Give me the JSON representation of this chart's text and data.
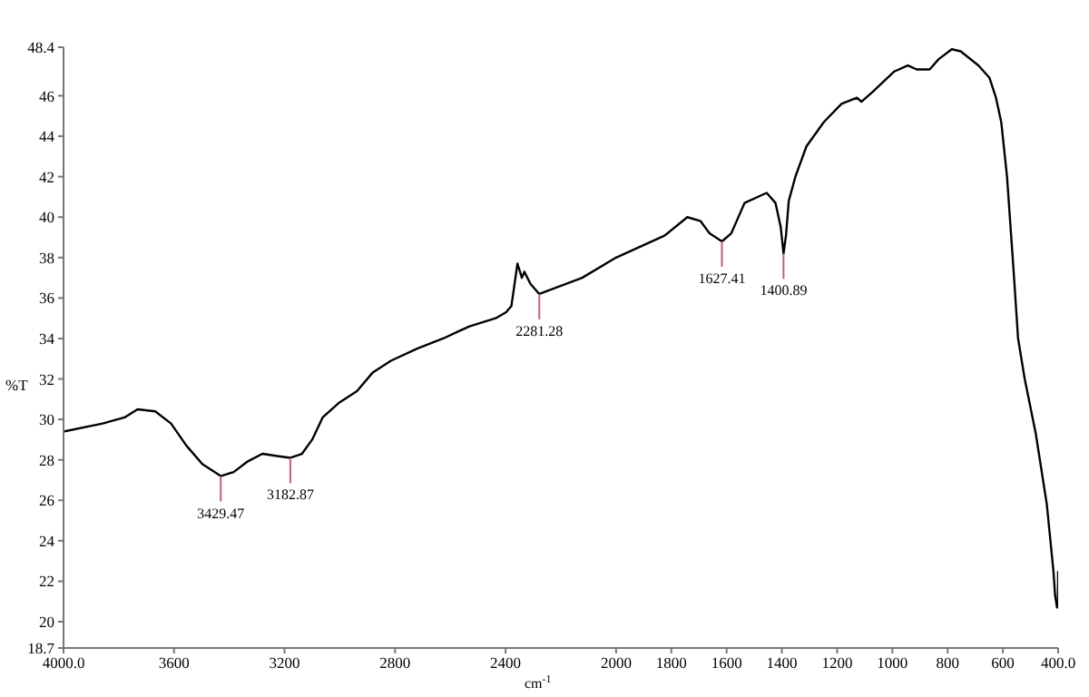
{
  "chart_data": {
    "type": "line",
    "xlabel": "cm$^{-1}$",
    "ylabel": "%T",
    "x": [
      4000,
      3858,
      3779,
      3732,
      3668,
      3611,
      3555,
      3498,
      3431,
      3384,
      3336,
      3280,
      3232,
      3179,
      3137,
      3100,
      3062,
      3005,
      2938,
      2882,
      2815,
      2720,
      2626,
      2531,
      2436,
      2398,
      2379,
      2357,
      2341,
      2332,
      2310,
      2278,
      2123,
      2000,
      1823,
      1742,
      1694,
      1662,
      1617,
      1583,
      1535,
      1455,
      1423,
      1404,
      1394,
      1385,
      1375,
      1351,
      1311,
      1248,
      1184,
      1128,
      1112,
      1071,
      993,
      944,
      912,
      865,
      833,
      785,
      753,
      689,
      649,
      625,
      606,
      585,
      561,
      545,
      521,
      481,
      441,
      417,
      411,
      404,
      401,
      400
    ],
    "series": [
      {
        "color": "#000000",
        "values": [
          29.4,
          29.8,
          30.1,
          30.5,
          30.4,
          29.8,
          28.7,
          27.8,
          27.2,
          27.4,
          27.9,
          28.3,
          28.2,
          28.1,
          28.3,
          29.0,
          30.1,
          30.8,
          31.4,
          32.3,
          32.9,
          33.5,
          34.0,
          34.6,
          35.0,
          35.3,
          35.6,
          37.7,
          37.0,
          37.3,
          36.7,
          36.2,
          37.0,
          38.0,
          39.1,
          40.0,
          39.8,
          39.2,
          38.8,
          39.2,
          40.7,
          41.2,
          40.7,
          39.5,
          38.2,
          39.1,
          40.8,
          42.0,
          43.5,
          44.7,
          45.6,
          45.9,
          45.7,
          46.2,
          47.2,
          47.5,
          47.3,
          47.3,
          47.8,
          48.3,
          48.2,
          47.5,
          46.9,
          45.9,
          44.7,
          42.0,
          37.3,
          34.0,
          32.0,
          29.3,
          25.8,
          22.5,
          21.3,
          20.7,
          20.7,
          22.5
        ]
      }
    ],
    "xlim": [
      4000,
      400
    ],
    "xticks": [
      {
        "value": 4000,
        "label": "4000.0"
      },
      3600,
      3200,
      2800,
      2400,
      2000,
      1800,
      1600,
      1400,
      1200,
      1000,
      800,
      600,
      {
        "value": 400,
        "label": "400.0"
      }
    ],
    "ylim": [
      18.7,
      48.4
    ],
    "yticks": [
      18.7,
      20,
      22,
      24,
      26,
      28,
      30,
      32,
      34,
      36,
      38,
      40,
      42,
      44,
      46,
      48.4
    ],
    "annotations": [
      {
        "text": "3429.47",
        "x": 3431,
        "y": 27.2
      },
      {
        "text": "3182.87",
        "x": 3179,
        "y": 28.1
      },
      {
        "text": "2281.28",
        "x": 2278,
        "y": 36.2
      },
      {
        "text": "1627.41",
        "x": 1617,
        "y": 38.8
      },
      {
        "text": "1400.89",
        "x": 1394,
        "y": 38.2
      }
    ],
    "grid": false,
    "legend": false,
    "marker": "none",
    "line_style": "solid"
  }
}
